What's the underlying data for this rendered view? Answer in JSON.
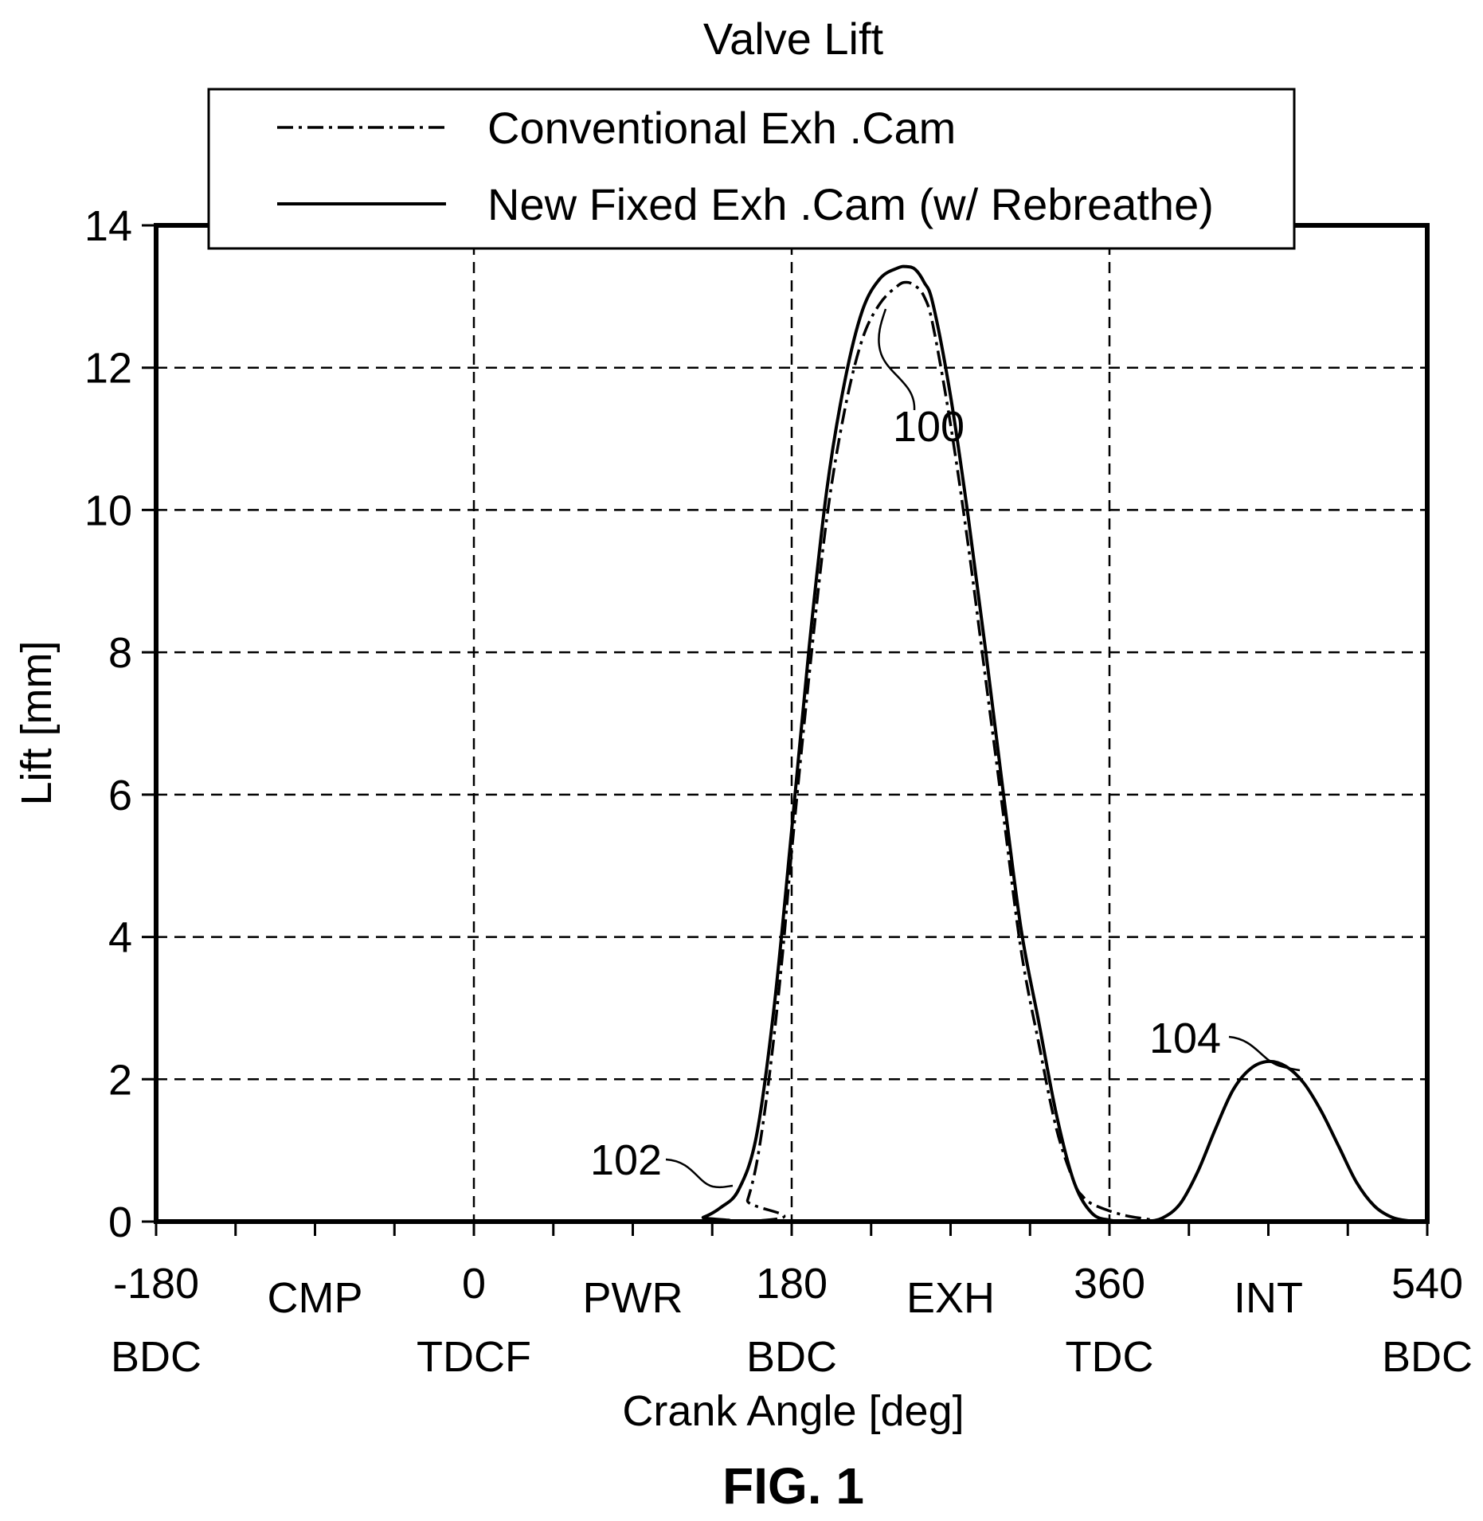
{
  "chart_data": {
    "type": "line",
    "title": "Valve Lift",
    "xlabel": "Crank Angle [deg]",
    "ylabel": "Lift [mm]",
    "xlim": [
      -180,
      540
    ],
    "ylim": [
      0,
      14
    ],
    "grid": true,
    "legend_placement": "top",
    "x_ticks": [
      -180,
      -135,
      -90,
      -45,
      0,
      45,
      90,
      135,
      180,
      225,
      270,
      315,
      360,
      405,
      450,
      495,
      540
    ],
    "y_ticks": [
      0,
      2,
      4,
      6,
      8,
      10,
      12,
      14
    ],
    "x_tick_labels": [
      {
        "value": -180,
        "number": "-180",
        "event": "BDC"
      },
      {
        "value": 0,
        "number": "0",
        "event": "TDCF"
      },
      {
        "value": 180,
        "number": "180",
        "event": "BDC"
      },
      {
        "value": 360,
        "number": "360",
        "event": "TDC"
      },
      {
        "value": 540,
        "number": "540",
        "event": "BDC"
      }
    ],
    "y_tick_labels": [
      "0",
      "2",
      "4",
      "6",
      "8",
      "10",
      "12",
      "14"
    ],
    "stroke_labels": [
      {
        "x": -90,
        "label": "CMP"
      },
      {
        "x": 90,
        "label": "PWR"
      },
      {
        "x": 270,
        "label": "EXH"
      },
      {
        "x": 450,
        "label": "INT"
      }
    ],
    "series": [
      {
        "name": "Conventional Exh .Cam",
        "style": "dash-dot",
        "x": [
          -180,
          150,
          155,
          160,
          165,
          170,
          175,
          180,
          190,
          200,
          210,
          220,
          230,
          240,
          245,
          250,
          255,
          260,
          270,
          280,
          290,
          300,
          310,
          320,
          330,
          340,
          345,
          350,
          360,
          370,
          380,
          385,
          390,
          395,
          400,
          540
        ],
        "y": [
          0,
          0,
          0.3,
          0.8,
          1.6,
          2.6,
          3.8,
          5.2,
          7.7,
          9.9,
          11.4,
          12.4,
          12.9,
          13.15,
          13.2,
          13.15,
          13.0,
          12.6,
          11.2,
          9.5,
          7.6,
          5.7,
          3.8,
          2.5,
          1.3,
          0.55,
          0.35,
          0.25,
          0.15,
          0.08,
          0.04,
          0.02,
          0.01,
          0,
          0,
          0
        ]
      },
      {
        "name": "New Fixed Exh .Cam (w/ Rebreathe)",
        "style": "solid",
        "x": [
          -180,
          120,
          130,
          140,
          150,
          160,
          170,
          180,
          190,
          200,
          210,
          220,
          230,
          240,
          245,
          250,
          255,
          260,
          270,
          280,
          290,
          300,
          310,
          320,
          330,
          340,
          350,
          360,
          370,
          380,
          390,
          400,
          410,
          420,
          430,
          440,
          450,
          460,
          470,
          480,
          490,
          500,
          510,
          520,
          530,
          540
        ],
        "y": [
          0,
          0,
          0.06,
          0.2,
          0.45,
          1.2,
          3.0,
          5.5,
          8.1,
          10.3,
          11.8,
          12.8,
          13.25,
          13.4,
          13.42,
          13.38,
          13.2,
          12.9,
          11.6,
          9.9,
          8.0,
          6.0,
          4.1,
          2.8,
          1.5,
          0.55,
          0.12,
          0.02,
          0,
          0,
          0.05,
          0.25,
          0.7,
          1.3,
          1.85,
          2.15,
          2.25,
          2.18,
          1.95,
          1.55,
          1.05,
          0.55,
          0.22,
          0.06,
          0.01,
          0
        ]
      }
    ],
    "annotations": [
      {
        "label": "100",
        "x": 262,
        "y": 11.6
      },
      {
        "label": "102",
        "x": 105,
        "y": 0.95
      },
      {
        "label": "104",
        "x": 390,
        "y": 2.5
      }
    ],
    "figure_label": "FIG. 1"
  }
}
